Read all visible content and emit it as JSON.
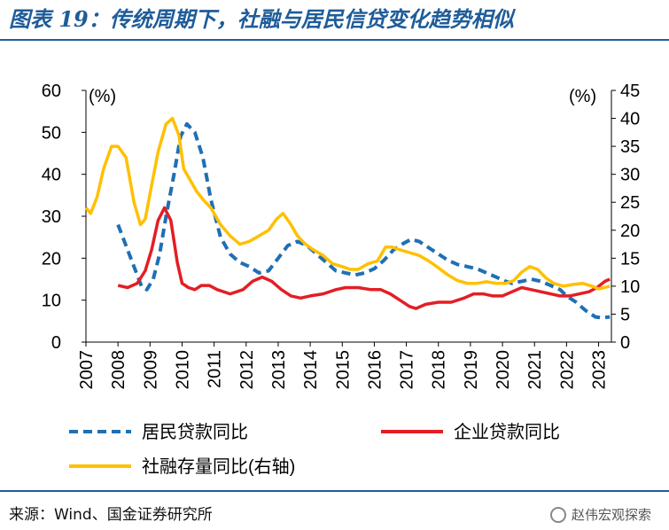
{
  "header": {
    "title": "图表 19：传统周期下，社融与居民信贷变化趋势相似"
  },
  "footer": {
    "source": "来源：Wind、国金证券研究所",
    "watermark": "赵伟宏观探索"
  },
  "colors": {
    "title": "#1f5c99",
    "household": "#1f6fb5",
    "corporate": "#e31e24",
    "tsf": "#ffc000"
  },
  "chart_data": {
    "type": "line",
    "left_axis": {
      "unit_label": "(%)",
      "ylim": [
        0,
        60
      ],
      "ticks": [
        0,
        10,
        20,
        30,
        40,
        50,
        60
      ]
    },
    "right_axis": {
      "unit_label": "(%)",
      "ylim": [
        0,
        45
      ],
      "ticks": [
        0,
        5,
        10,
        15,
        20,
        25,
        30,
        35,
        40,
        45
      ]
    },
    "x_axis": {
      "ticks": [
        "2007",
        "2008",
        "2009",
        "2010",
        "2011",
        "2012",
        "2013",
        "2014",
        "2015",
        "2016",
        "2017",
        "2018",
        "2019",
        "2020",
        "2021",
        "2022",
        "2023"
      ],
      "xlim": [
        2007,
        2023.4
      ]
    },
    "legend_position": "bottom",
    "series": [
      {
        "name": "居民贷款同比",
        "axis": "left",
        "style": "dashed",
        "points": [
          [
            2008.0,
            28
          ],
          [
            2008.2,
            24
          ],
          [
            2008.5,
            18
          ],
          [
            2008.75,
            13
          ],
          [
            2008.9,
            12.5
          ],
          [
            2009.1,
            15
          ],
          [
            2009.3,
            21
          ],
          [
            2009.5,
            30
          ],
          [
            2009.75,
            40
          ],
          [
            2009.95,
            49
          ],
          [
            2010.15,
            52
          ],
          [
            2010.4,
            50
          ],
          [
            2010.65,
            44
          ],
          [
            2010.9,
            34
          ],
          [
            2011.2,
            25
          ],
          [
            2011.5,
            21
          ],
          [
            2011.8,
            19
          ],
          [
            2012.1,
            18
          ],
          [
            2012.4,
            16.5
          ],
          [
            2012.7,
            17
          ],
          [
            2013.0,
            20
          ],
          [
            2013.3,
            23
          ],
          [
            2013.6,
            24
          ],
          [
            2013.9,
            23
          ],
          [
            2014.2,
            21
          ],
          [
            2014.5,
            19
          ],
          [
            2014.8,
            17
          ],
          [
            2015.1,
            16.5
          ],
          [
            2015.4,
            16
          ],
          [
            2015.7,
            16.5
          ],
          [
            2016.0,
            17.5
          ],
          [
            2016.3,
            19.5
          ],
          [
            2016.6,
            22
          ],
          [
            2016.9,
            23.5
          ],
          [
            2017.15,
            24.5
          ],
          [
            2017.4,
            24
          ],
          [
            2017.7,
            22.5
          ],
          [
            2018.0,
            21
          ],
          [
            2018.3,
            19.5
          ],
          [
            2018.6,
            18.5
          ],
          [
            2018.9,
            18
          ],
          [
            2019.2,
            17.5
          ],
          [
            2019.5,
            16.5
          ],
          [
            2019.8,
            15.5
          ],
          [
            2020.1,
            14.5
          ],
          [
            2020.3,
            14
          ],
          [
            2020.6,
            14.5
          ],
          [
            2020.9,
            15
          ],
          [
            2021.2,
            14.5
          ],
          [
            2021.5,
            13.5
          ],
          [
            2021.8,
            12.5
          ],
          [
            2022.0,
            11
          ],
          [
            2022.3,
            9.5
          ],
          [
            2022.6,
            7.5
          ],
          [
            2022.9,
            6
          ],
          [
            2023.1,
            5.8
          ],
          [
            2023.35,
            6
          ]
        ]
      },
      {
        "name": "企业贷款同比",
        "axis": "left",
        "style": "solid",
        "points": [
          [
            2008.0,
            13.5
          ],
          [
            2008.3,
            13
          ],
          [
            2008.6,
            14
          ],
          [
            2008.85,
            17
          ],
          [
            2009.05,
            22
          ],
          [
            2009.25,
            29
          ],
          [
            2009.45,
            32
          ],
          [
            2009.65,
            29
          ],
          [
            2009.85,
            19
          ],
          [
            2010.0,
            14
          ],
          [
            2010.2,
            13
          ],
          [
            2010.4,
            12.5
          ],
          [
            2010.6,
            13.5
          ],
          [
            2010.85,
            13.5
          ],
          [
            2011.1,
            12.5
          ],
          [
            2011.5,
            11.5
          ],
          [
            2011.9,
            12.5
          ],
          [
            2012.2,
            14.5
          ],
          [
            2012.5,
            15.5
          ],
          [
            2012.8,
            14.5
          ],
          [
            2013.1,
            12.5
          ],
          [
            2013.4,
            11
          ],
          [
            2013.7,
            10.5
          ],
          [
            2014.0,
            11
          ],
          [
            2014.4,
            11.5
          ],
          [
            2014.8,
            12.5
          ],
          [
            2015.1,
            13
          ],
          [
            2015.5,
            13
          ],
          [
            2015.9,
            12.5
          ],
          [
            2016.2,
            12.5
          ],
          [
            2016.5,
            11.5
          ],
          [
            2016.8,
            10
          ],
          [
            2017.1,
            8.5
          ],
          [
            2017.3,
            8
          ],
          [
            2017.6,
            9
          ],
          [
            2018.0,
            9.5
          ],
          [
            2018.4,
            9.5
          ],
          [
            2018.8,
            10.5
          ],
          [
            2019.1,
            11.5
          ],
          [
            2019.4,
            11.5
          ],
          [
            2019.7,
            11
          ],
          [
            2020.0,
            11
          ],
          [
            2020.3,
            12
          ],
          [
            2020.6,
            13
          ],
          [
            2020.9,
            12.5
          ],
          [
            2021.2,
            12
          ],
          [
            2021.5,
            11.5
          ],
          [
            2021.8,
            11
          ],
          [
            2022.1,
            11
          ],
          [
            2022.4,
            11.5
          ],
          [
            2022.7,
            12
          ],
          [
            2022.95,
            13
          ],
          [
            2023.2,
            14.5
          ],
          [
            2023.35,
            15
          ]
        ]
      },
      {
        "name": "社融存量同比(右轴)",
        "axis": "right",
        "style": "solid",
        "points": [
          [
            2007.0,
            24
          ],
          [
            2007.15,
            23
          ],
          [
            2007.35,
            26
          ],
          [
            2007.55,
            31
          ],
          [
            2007.8,
            35
          ],
          [
            2008.0,
            35
          ],
          [
            2008.25,
            33
          ],
          [
            2008.5,
            25
          ],
          [
            2008.7,
            21
          ],
          [
            2008.85,
            22
          ],
          [
            2009.05,
            28
          ],
          [
            2009.25,
            34
          ],
          [
            2009.5,
            39
          ],
          [
            2009.7,
            40
          ],
          [
            2009.9,
            37
          ],
          [
            2010.05,
            31
          ],
          [
            2010.25,
            29
          ],
          [
            2010.45,
            27
          ],
          [
            2010.65,
            25.5
          ],
          [
            2010.9,
            24
          ],
          [
            2011.2,
            21
          ],
          [
            2011.5,
            19
          ],
          [
            2011.8,
            17.5
          ],
          [
            2012.1,
            18
          ],
          [
            2012.4,
            19
          ],
          [
            2012.7,
            20
          ],
          [
            2012.95,
            22
          ],
          [
            2013.15,
            23
          ],
          [
            2013.4,
            21
          ],
          [
            2013.6,
            19
          ],
          [
            2013.85,
            17.5
          ],
          [
            2014.1,
            16.5
          ],
          [
            2014.4,
            15.5
          ],
          [
            2014.7,
            14
          ],
          [
            2015.0,
            13.5
          ],
          [
            2015.25,
            13
          ],
          [
            2015.5,
            13
          ],
          [
            2015.8,
            14
          ],
          [
            2016.1,
            14.5
          ],
          [
            2016.35,
            17
          ],
          [
            2016.55,
            17
          ],
          [
            2016.8,
            16.5
          ],
          [
            2017.1,
            16
          ],
          [
            2017.4,
            15.5
          ],
          [
            2017.7,
            14.5
          ],
          [
            2017.95,
            13.5
          ],
          [
            2018.3,
            12
          ],
          [
            2018.6,
            11
          ],
          [
            2018.9,
            10.5
          ],
          [
            2019.2,
            10.5
          ],
          [
            2019.5,
            10.8
          ],
          [
            2019.8,
            10.5
          ],
          [
            2020.1,
            10.5
          ],
          [
            2020.35,
            11
          ],
          [
            2020.6,
            12.5
          ],
          [
            2020.85,
            13.5
          ],
          [
            2021.1,
            13
          ],
          [
            2021.35,
            11.5
          ],
          [
            2021.6,
            10.5
          ],
          [
            2021.9,
            10
          ],
          [
            2022.2,
            10.3
          ],
          [
            2022.5,
            10.5
          ],
          [
            2022.8,
            10
          ],
          [
            2023.0,
            9.5
          ],
          [
            2023.2,
            9.8
          ],
          [
            2023.35,
            10
          ]
        ]
      }
    ]
  }
}
